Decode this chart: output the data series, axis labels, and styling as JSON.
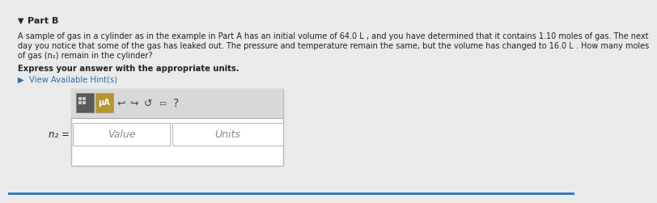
{
  "part_label": "Part B",
  "paragraph_line1": "A sample of gas in a cylinder as in the example in Part A has an initial volume of 64.0 L , and you have determined that it contains 1.10 moles of gas. The next",
  "paragraph_line2": "day you notice that some of the gas has leaked out. The pressure and temperature remain the same, but the volume has changed to 16.0 L . How many moles",
  "paragraph_line3": "of gas (n₂) remain in the cylinder?",
  "bold_line": "Express your answer with the appropriate units.",
  "hint_line": "▶  View Available Hint(s)",
  "n2_label": "n₂ =",
  "value_placeholder": "Value",
  "units_placeholder": "Units",
  "bg_color": "#eaeaea",
  "white": "#ffffff",
  "input_bg": "#fafafa",
  "border_color": "#bbbbbb",
  "text_color": "#222222",
  "hint_color": "#2e6da4",
  "toolbar_bg": "#d8d8d8",
  "icon_dark": "#5a5a5a",
  "icon_gold": "#b8962e",
  "toolbar_border": "#aaaaaa",
  "bottom_bar_color": "#3a7abf",
  "font_size_body": 7.0,
  "font_size_bold": 7.2,
  "font_size_hint": 7.2,
  "font_size_label": 8.5
}
